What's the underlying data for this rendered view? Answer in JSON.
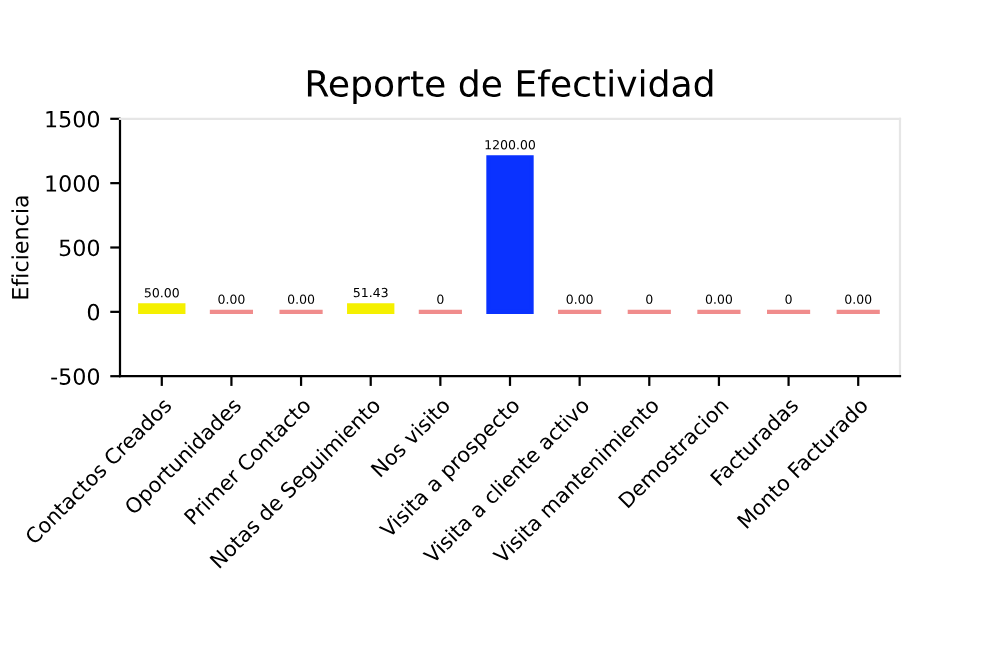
{
  "chart_data": {
    "type": "bar",
    "title": "Reporte de Efectividad",
    "ylabel": "Eficiencia",
    "categories": [
      "Contactos Creados",
      "Oportunidades",
      "Primer Contacto",
      "Notas de Seguimiento",
      "Nos visito",
      "Visita a prospecto",
      "Visita a cliente activo",
      "Visita mantenimiento",
      "Demostracion",
      "Facturadas",
      "Monto Facturado"
    ],
    "values": [
      50,
      0,
      0,
      51.43,
      0,
      1200,
      0,
      0,
      0,
      0,
      0
    ],
    "colors": [
      "#f5f000",
      "#f08c8c",
      "#f08c8c",
      "#f5f000",
      "#f08c8c",
      "#0a32ff",
      "#f08c8c",
      "#f08c8c",
      "#f08c8c",
      "#f08c8c",
      "#f08c8c"
    ],
    "value_labels": [
      "50.00",
      "0.00",
      "0.00",
      "51.43",
      "0",
      "1200.00",
      "0.00",
      "0",
      "0.00",
      "0",
      "0.00"
    ],
    "ylim": [
      -500,
      1500
    ],
    "yticks": [
      -500,
      0,
      500,
      1000,
      1500
    ],
    "grid": false,
    "legend": false
  }
}
